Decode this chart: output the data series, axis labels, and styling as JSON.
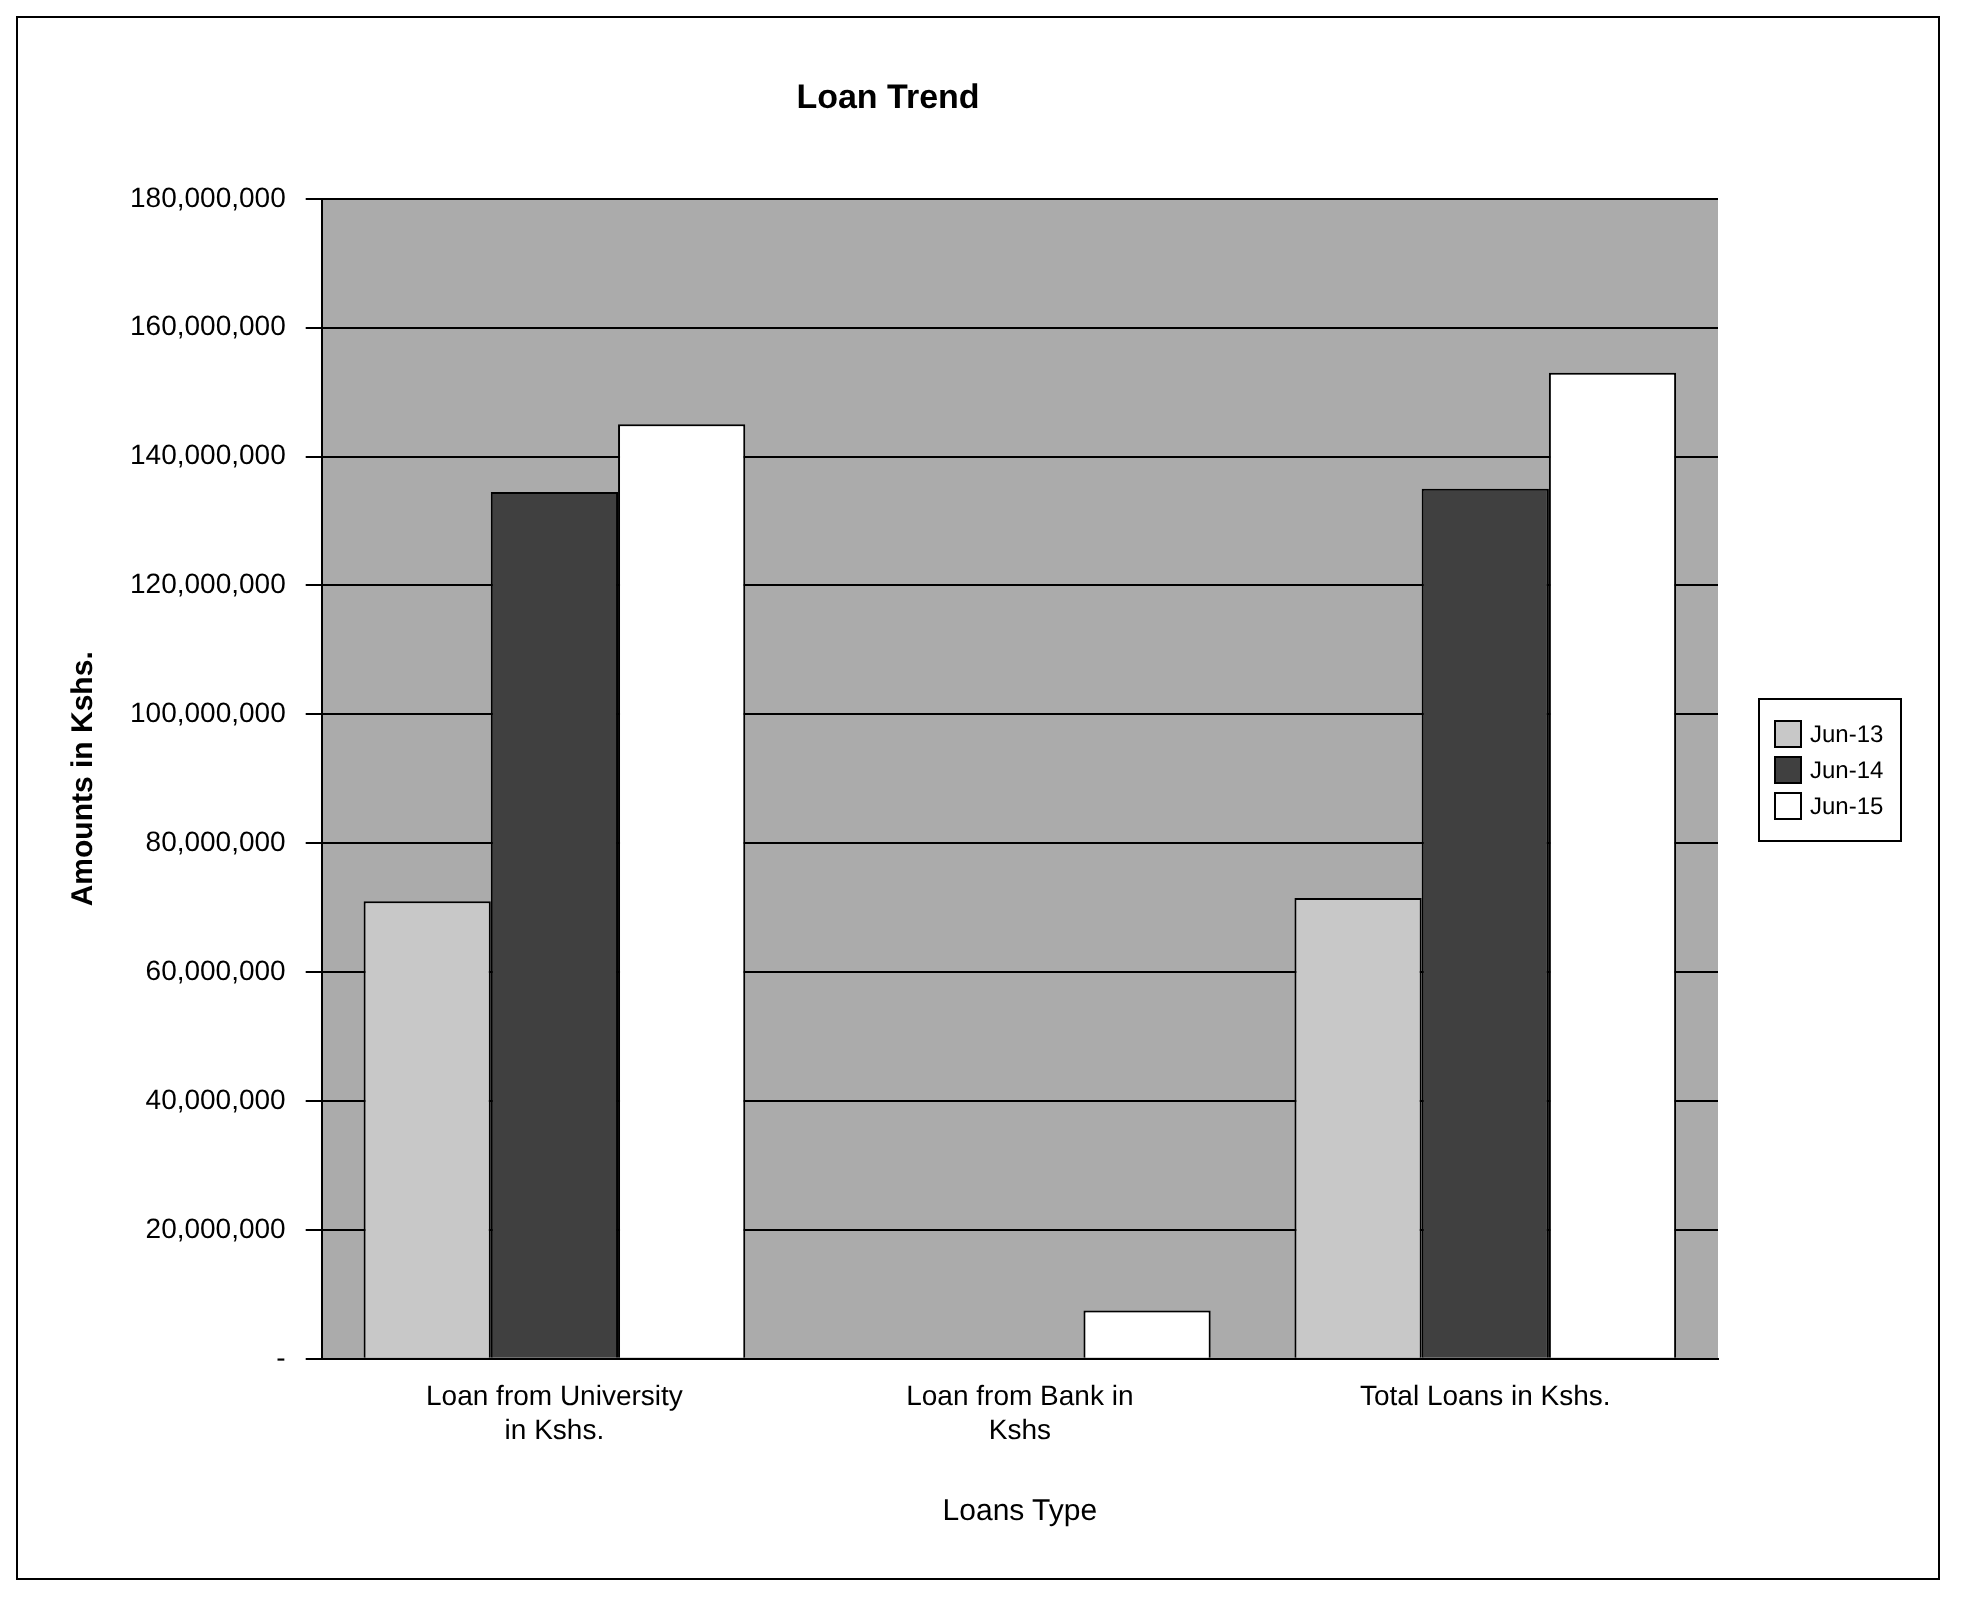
{
  "chart_data": {
    "type": "bar",
    "title": "Loan Trend",
    "xlabel": "Loans Type",
    "ylabel": "Amounts in Kshs.",
    "categories": [
      [
        "Loan from University",
        "in Kshs."
      ],
      [
        "Loan from Bank in",
        "Kshs"
      ],
      [
        "Total Loans in Kshs."
      ]
    ],
    "series": [
      {
        "name": "Jun-13",
        "color": "#c8c8c8",
        "values": [
          71000000,
          0,
          71500000
        ]
      },
      {
        "name": "Jun-14",
        "color": "#404040",
        "values": [
          134500000,
          0,
          135000000
        ]
      },
      {
        "name": "Jun-15",
        "color": "#ffffff",
        "values": [
          145000000,
          7500000,
          153000000
        ]
      }
    ],
    "ylim": [
      0,
      180000000
    ],
    "yticks": [
      {
        "value": 0,
        "label": "-"
      },
      {
        "value": 20000000,
        "label": "20,000,000"
      },
      {
        "value": 40000000,
        "label": "40,000,000"
      },
      {
        "value": 60000000,
        "label": "60,000,000"
      },
      {
        "value": 80000000,
        "label": "80,000,000"
      },
      {
        "value": 100000000,
        "label": "100,000,000"
      },
      {
        "value": 120000000,
        "label": "120,000,000"
      },
      {
        "value": 140000000,
        "label": "140,000,000"
      },
      {
        "value": 160000000,
        "label": "160,000,000"
      },
      {
        "value": 180000000,
        "label": "180,000,000"
      }
    ],
    "grid": "y",
    "legend": "right"
  }
}
